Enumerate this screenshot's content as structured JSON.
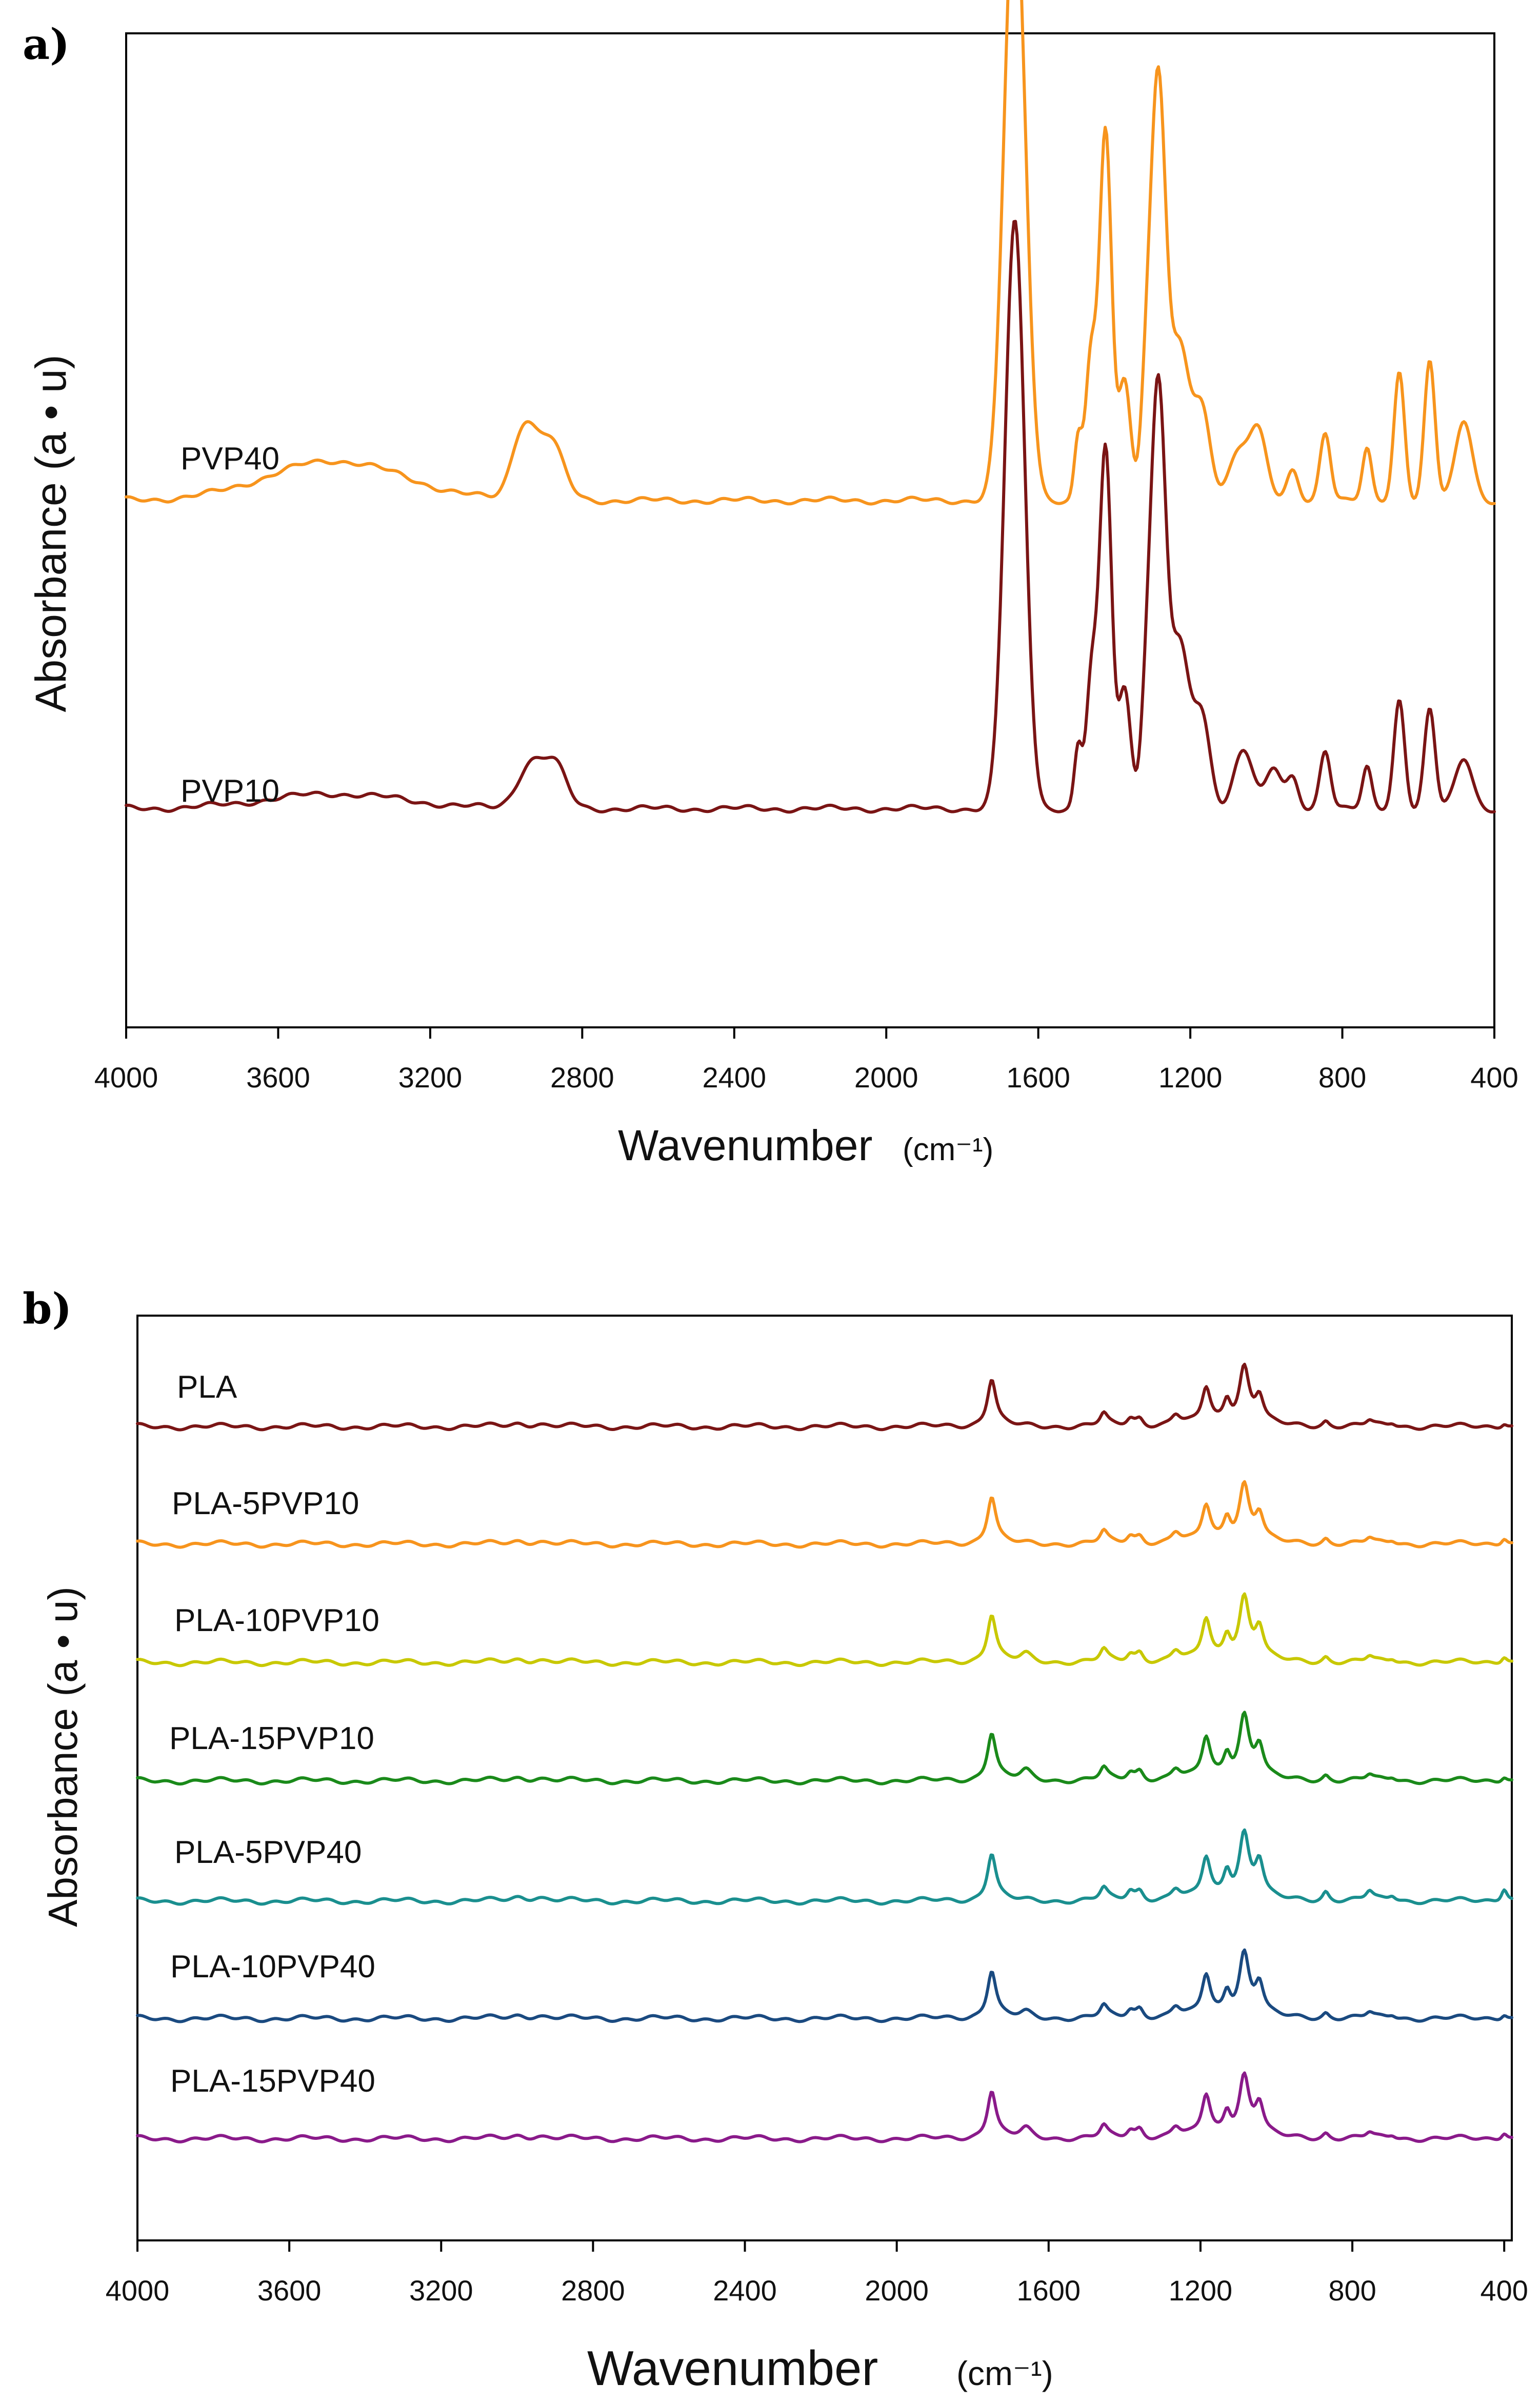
{
  "chart_data": [
    {
      "panel": "a)",
      "type": "line",
      "xlabel": "Wavenumber",
      "xunit": "(cm⁻¹)",
      "ylabel": "Absorbance (a • u)",
      "xlim": [
        4000,
        400
      ],
      "x_ticks": [
        "4000",
        "3600",
        "3200",
        "2800",
        "2400",
        "2000",
        "1600",
        "1200",
        "800",
        "400"
      ],
      "series": [
        {
          "name": "PVP40",
          "color": "#f7941d",
          "baseline": 0.53,
          "scale": 1.0,
          "sharp": false,
          "peaks": [
            [
              3450,
              0.04,
              180
            ],
            [
              2955,
              0.07,
              30
            ],
            [
              2885,
              0.06,
              35
            ],
            [
              1662,
              0.62,
              28
            ],
            [
              1495,
              0.06,
              10
            ],
            [
              1462,
              0.14,
              14
            ],
            [
              1423,
              0.37,
              16
            ],
            [
              1373,
              0.12,
              16
            ],
            [
              1318,
              0.08,
              14
            ],
            [
              1285,
              0.42,
              20
            ],
            [
              1228,
              0.15,
              25
            ],
            [
              1170,
              0.09,
              22
            ],
            [
              1070,
              0.05,
              30
            ],
            [
              1020,
              0.06,
              22
            ],
            [
              930,
              0.03,
              15
            ],
            [
              845,
              0.07,
              14
            ],
            [
              735,
              0.05,
              12
            ],
            [
              650,
              0.13,
              14
            ],
            [
              570,
              0.14,
              14
            ],
            [
              480,
              0.08,
              22
            ]
          ]
        },
        {
          "name": "PVP10",
          "color": "#7a1414",
          "baseline": 0.22,
          "scale": 1.0,
          "sharp": false,
          "peaks": [
            [
              3450,
              0.015,
              180
            ],
            [
              2935,
              0.045,
              35
            ],
            [
              2870,
              0.04,
              30
            ],
            [
              1662,
              0.59,
              26
            ],
            [
              1495,
              0.06,
              10
            ],
            [
              1460,
              0.13,
              14
            ],
            [
              1423,
              0.36,
              16
            ],
            [
              1373,
              0.12,
              16
            ],
            [
              1318,
              0.07,
              14
            ],
            [
              1285,
              0.42,
              20
            ],
            [
              1228,
              0.16,
              25
            ],
            [
              1170,
              0.09,
              22
            ],
            [
              1060,
              0.06,
              25
            ],
            [
              980,
              0.04,
              20
            ],
            [
              930,
              0.03,
              15
            ],
            [
              845,
              0.06,
              14
            ],
            [
              735,
              0.04,
              12
            ],
            [
              650,
              0.11,
              14
            ],
            [
              570,
              0.1,
              14
            ],
            [
              480,
              0.05,
              22
            ]
          ]
        }
      ]
    },
    {
      "panel": "b)",
      "type": "line",
      "xlabel": "Wavenumber",
      "xunit": "(cm⁻¹)",
      "ylabel": "Absorbance (a • u)",
      "xlim": [
        4000,
        380
      ],
      "x_ticks": [
        "4000",
        "3600",
        "3200",
        "2800",
        "2400",
        "2000",
        "1600",
        "1200",
        "800",
        "400"
      ],
      "series": [
        {
          "name": "PLA",
          "color": "#7a1515",
          "baseline": 0.88,
          "scale": 1.0,
          "sharp": true,
          "peaks": [
            [
              2995,
              0.003,
              25
            ],
            [
              2945,
              0.003,
              25
            ],
            [
              1750,
              0.052,
              14
            ],
            [
              1455,
              0.013,
              12
            ],
            [
              1385,
              0.008,
              12
            ],
            [
              1360,
              0.008,
              12
            ],
            [
              1265,
              0.012,
              15
            ],
            [
              1185,
              0.04,
              14
            ],
            [
              1130,
              0.025,
              12
            ],
            [
              1085,
              0.062,
              16
            ],
            [
              1045,
              0.03,
              14
            ],
            [
              870,
              0.006,
              10
            ],
            [
              755,
              0.006,
              12
            ],
            [
              695,
              0.004,
              12
            ],
            [
              400,
              0.005,
              10
            ]
          ]
        },
        {
          "name": "PLA-5PVP10",
          "color": "#f7941d",
          "baseline": 0.753,
          "scale": 1.0,
          "sharp": true,
          "peaks": [
            [
              2995,
              0.003,
              25
            ],
            [
              2945,
              0.003,
              25
            ],
            [
              1750,
              0.052,
              14
            ],
            [
              1455,
              0.013,
              12
            ],
            [
              1385,
              0.008,
              12
            ],
            [
              1360,
              0.008,
              12
            ],
            [
              1265,
              0.012,
              15
            ],
            [
              1185,
              0.04,
              14
            ],
            [
              1130,
              0.025,
              12
            ],
            [
              1085,
              0.062,
              16
            ],
            [
              1045,
              0.03,
              14
            ],
            [
              870,
              0.006,
              10
            ],
            [
              755,
              0.006,
              12
            ],
            [
              695,
              0.004,
              12
            ],
            [
              400,
              0.008,
              10
            ]
          ]
        },
        {
          "name": "PLA-10PVP10",
          "color": "#c8c800",
          "baseline": 0.625,
          "scale": 1.0,
          "sharp": true,
          "peaks": [
            [
              2995,
              0.003,
              25
            ],
            [
              2945,
              0.003,
              25
            ],
            [
              1750,
              0.052,
              14
            ],
            [
              1660,
              0.008,
              18
            ],
            [
              1455,
              0.013,
              12
            ],
            [
              1385,
              0.008,
              12
            ],
            [
              1360,
              0.01,
              12
            ],
            [
              1265,
              0.012,
              15
            ],
            [
              1185,
              0.045,
              14
            ],
            [
              1130,
              0.025,
              12
            ],
            [
              1085,
              0.068,
              16
            ],
            [
              1045,
              0.035,
              14
            ],
            [
              870,
              0.006,
              10
            ],
            [
              755,
              0.006,
              12
            ],
            [
              695,
              0.004,
              12
            ],
            [
              400,
              0.008,
              10
            ]
          ]
        },
        {
          "name": "PLA-15PVP10",
          "color": "#1a8a1a",
          "baseline": 0.497,
          "scale": 1.0,
          "sharp": true,
          "peaks": [
            [
              2995,
              0.003,
              25
            ],
            [
              2945,
              0.003,
              25
            ],
            [
              1750,
              0.052,
              14
            ],
            [
              1660,
              0.01,
              18
            ],
            [
              1455,
              0.013,
              12
            ],
            [
              1385,
              0.008,
              12
            ],
            [
              1360,
              0.01,
              12
            ],
            [
              1265,
              0.012,
              15
            ],
            [
              1185,
              0.045,
              14
            ],
            [
              1130,
              0.025,
              12
            ],
            [
              1085,
              0.068,
              16
            ],
            [
              1045,
              0.035,
              14
            ],
            [
              870,
              0.006,
              10
            ],
            [
              755,
              0.006,
              12
            ],
            [
              695,
              0.004,
              12
            ],
            [
              400,
              0.006,
              10
            ]
          ]
        },
        {
          "name": "PLA-5PVP40",
          "color": "#1a8f8f",
          "baseline": 0.367,
          "scale": 1.0,
          "sharp": true,
          "peaks": [
            [
              2995,
              0.004,
              25
            ],
            [
              2945,
              0.004,
              25
            ],
            [
              1750,
              0.052,
              14
            ],
            [
              1455,
              0.013,
              12
            ],
            [
              1385,
              0.01,
              12
            ],
            [
              1360,
              0.01,
              12
            ],
            [
              1265,
              0.012,
              15
            ],
            [
              1185,
              0.045,
              14
            ],
            [
              1130,
              0.028,
              12
            ],
            [
              1085,
              0.07,
              16
            ],
            [
              1045,
              0.04,
              14
            ],
            [
              870,
              0.01,
              10
            ],
            [
              755,
              0.01,
              12
            ],
            [
              695,
              0.006,
              12
            ],
            [
              400,
              0.015,
              10
            ]
          ]
        },
        {
          "name": "PLA-10PVP40",
          "color": "#1a4a80",
          "baseline": 0.24,
          "scale": 1.0,
          "sharp": true,
          "peaks": [
            [
              2995,
              0.003,
              25
            ],
            [
              2945,
              0.003,
              25
            ],
            [
              1750,
              0.052,
              14
            ],
            [
              1660,
              0.006,
              18
            ],
            [
              1455,
              0.013,
              12
            ],
            [
              1385,
              0.008,
              12
            ],
            [
              1360,
              0.01,
              12
            ],
            [
              1265,
              0.012,
              15
            ],
            [
              1185,
              0.045,
              14
            ],
            [
              1130,
              0.025,
              12
            ],
            [
              1085,
              0.068,
              16
            ],
            [
              1045,
              0.035,
              14
            ],
            [
              870,
              0.006,
              10
            ],
            [
              755,
              0.006,
              12
            ],
            [
              695,
              0.004,
              12
            ],
            [
              400,
              0.006,
              10
            ]
          ]
        },
        {
          "name": "PLA-15PVP40",
          "color": "#8a1a8a",
          "baseline": 0.11,
          "scale": 1.0,
          "sharp": true,
          "peaks": [
            [
              2995,
              0.003,
              25
            ],
            [
              2945,
              0.003,
              25
            ],
            [
              1750,
              0.052,
              14
            ],
            [
              1660,
              0.01,
              18
            ],
            [
              1455,
              0.013,
              12
            ],
            [
              1385,
              0.008,
              12
            ],
            [
              1360,
              0.01,
              12
            ],
            [
              1265,
              0.012,
              15
            ],
            [
              1185,
              0.045,
              14
            ],
            [
              1130,
              0.025,
              12
            ],
            [
              1085,
              0.065,
              16
            ],
            [
              1045,
              0.035,
              14
            ],
            [
              870,
              0.006,
              10
            ],
            [
              755,
              0.006,
              12
            ],
            [
              695,
              0.004,
              12
            ],
            [
              400,
              0.008,
              10
            ]
          ]
        }
      ]
    }
  ]
}
